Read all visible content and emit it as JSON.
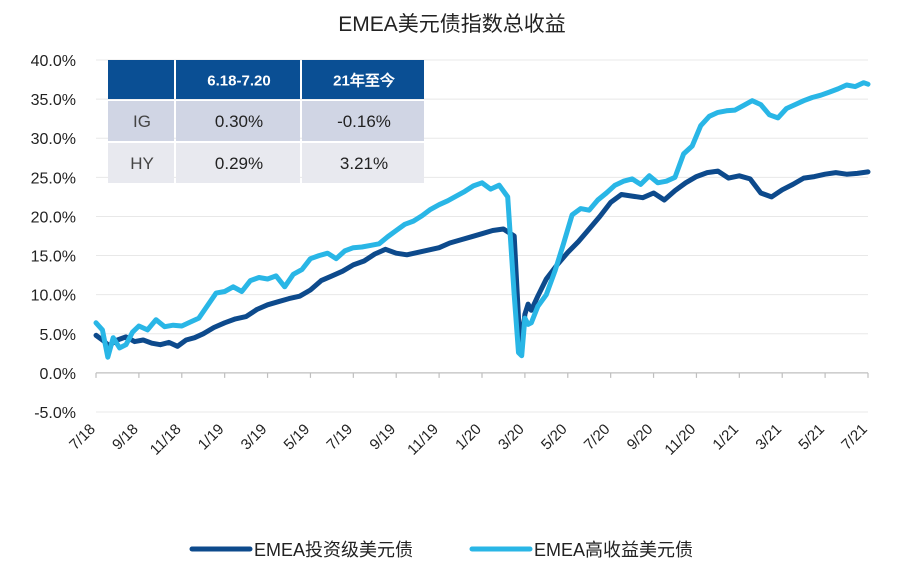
{
  "chart_data": {
    "type": "line",
    "title": "EMEA美元债指数总收益",
    "xlabel": "",
    "ylabel": "",
    "y_tick_labels": [
      "40.0%",
      "35.0%",
      "30.0%",
      "25.0%",
      "20.0%",
      "15.0%",
      "10.0%",
      "5.0%",
      "0.0%",
      "-5.0%"
    ],
    "y_tick_values": [
      40,
      35,
      30,
      25,
      20,
      15,
      10,
      5,
      0,
      -5
    ],
    "ylim": [
      -5,
      40
    ],
    "x_tick_labels": [
      "7/18",
      "9/18",
      "11/18",
      "1/19",
      "3/19",
      "5/19",
      "7/19",
      "9/19",
      "11/19",
      "1/20",
      "3/20",
      "5/20",
      "7/20",
      "9/20",
      "11/20",
      "1/21",
      "3/21",
      "5/21",
      "7/21"
    ],
    "xlim": [
      0,
      36
    ],
    "grid": true,
    "legend_position": "bottom",
    "series": [
      {
        "name": "EMEA投资级美元债",
        "color": "#0d4a8c",
        "x": [
          0,
          0.3,
          0.6,
          1,
          1.4,
          1.8,
          2.2,
          2.6,
          3,
          3.4,
          3.8,
          4.2,
          4.6,
          5,
          5.5,
          6,
          6.5,
          7,
          7.5,
          8,
          8.5,
          9,
          9.5,
          10,
          10.5,
          11,
          11.5,
          12,
          12.5,
          13,
          13.5,
          14,
          14.5,
          15,
          15.5,
          16,
          16.5,
          17,
          17.5,
          18,
          18.5,
          19,
          19.5,
          19.7,
          19.85,
          20,
          20.15,
          20.3,
          20.6,
          21,
          21.5,
          22,
          22.5,
          23,
          23.5,
          24,
          24.5,
          25,
          25.5,
          26,
          26.5,
          27,
          27.5,
          28,
          28.5,
          29,
          29.5,
          30,
          30.5,
          31,
          31.5,
          32,
          32.5,
          33,
          33.5,
          34,
          34.5,
          35,
          35.5,
          36
        ],
        "y": [
          4.8,
          4.2,
          3.5,
          4.2,
          4.6,
          4.0,
          4.2,
          3.8,
          3.6,
          3.9,
          3.4,
          4.2,
          4.5,
          5.0,
          5.8,
          6.4,
          6.9,
          7.2,
          8.1,
          8.7,
          9.1,
          9.5,
          9.8,
          10.6,
          11.8,
          12.4,
          13.0,
          13.8,
          14.3,
          15.2,
          15.8,
          15.3,
          15.1,
          15.4,
          15.7,
          16.0,
          16.6,
          17.0,
          17.4,
          17.8,
          18.2,
          18.4,
          17.5,
          7.0,
          3.5,
          7.5,
          8.8,
          8.0,
          9.8,
          12.0,
          13.8,
          15.4,
          16.8,
          18.4,
          20.0,
          21.8,
          22.8,
          22.6,
          22.4,
          23.0,
          22.1,
          23.3,
          24.3,
          25.1,
          25.6,
          25.8,
          24.9,
          25.2,
          24.8,
          23.0,
          22.5,
          23.4,
          24.1,
          24.9,
          25.1,
          25.4,
          25.6,
          25.4,
          25.5,
          25.7
        ]
      },
      {
        "name": "EMEA高收益美元债",
        "color": "#29b6e6",
        "x": [
          0,
          0.3,
          0.55,
          0.8,
          1.1,
          1.4,
          1.7,
          2.0,
          2.4,
          2.8,
          3.2,
          3.6,
          4.0,
          4.4,
          4.8,
          5.2,
          5.6,
          6.0,
          6.4,
          6.8,
          7.2,
          7.6,
          8.0,
          8.4,
          8.8,
          9.2,
          9.6,
          10.0,
          10.4,
          10.8,
          11.2,
          11.6,
          12.0,
          12.4,
          12.8,
          13.2,
          13.6,
          14.0,
          14.4,
          14.8,
          15.2,
          15.6,
          16.0,
          16.4,
          16.8,
          17.2,
          17.6,
          18.0,
          18.4,
          18.8,
          19.2,
          19.5,
          19.7,
          19.85,
          20.0,
          20.15,
          20.3,
          20.6,
          21.0,
          21.4,
          21.8,
          22.2,
          22.6,
          23.0,
          23.4,
          23.8,
          24.2,
          24.6,
          25.0,
          25.4,
          25.8,
          26.2,
          26.6,
          27.0,
          27.4,
          27.8,
          28.2,
          28.6,
          29.0,
          29.4,
          29.8,
          30.2,
          30.6,
          31.0,
          31.4,
          31.8,
          32.2,
          32.6,
          33.0,
          33.4,
          33.8,
          34.2,
          34.6,
          35.0,
          35.4,
          35.8,
          36.0
        ],
        "y": [
          6.4,
          5.5,
          2.0,
          4.5,
          3.2,
          3.6,
          5.2,
          6.0,
          5.5,
          6.8,
          5.9,
          6.1,
          6.0,
          6.5,
          7.0,
          8.6,
          10.2,
          10.4,
          11.0,
          10.4,
          11.8,
          12.2,
          12.0,
          12.4,
          11.0,
          12.6,
          13.2,
          14.6,
          15.0,
          15.3,
          14.6,
          15.6,
          16.0,
          16.1,
          16.3,
          16.5,
          17.4,
          18.2,
          19.0,
          19.4,
          20.1,
          20.9,
          21.5,
          22.0,
          22.6,
          23.2,
          23.9,
          24.3,
          23.5,
          24.0,
          22.5,
          10.0,
          2.6,
          2.2,
          7.0,
          6.2,
          6.4,
          8.5,
          10.0,
          13.0,
          16.5,
          20.2,
          21.0,
          20.8,
          22.1,
          23.0,
          24.0,
          24.5,
          24.8,
          24.1,
          25.2,
          24.3,
          24.5,
          25.0,
          28.0,
          29.0,
          31.6,
          32.8,
          33.3,
          33.5,
          33.6,
          34.2,
          34.8,
          34.3,
          33.0,
          32.6,
          33.8,
          34.3,
          34.8,
          35.2,
          35.5,
          35.9,
          36.3,
          36.8,
          36.6,
          37.1,
          36.9
        ]
      }
    ],
    "table": {
      "headers": [
        "",
        "6.18-7.20",
        "21年至今"
      ],
      "rows": [
        {
          "label": "IG",
          "values": [
            "0.30%",
            "-0.16%"
          ]
        },
        {
          "label": "HY",
          "values": [
            "0.29%",
            "3.21%"
          ]
        }
      ],
      "header_color": "#0a4f94",
      "row_colors": [
        "#d0d5e4",
        "#e8e9ef"
      ]
    }
  }
}
